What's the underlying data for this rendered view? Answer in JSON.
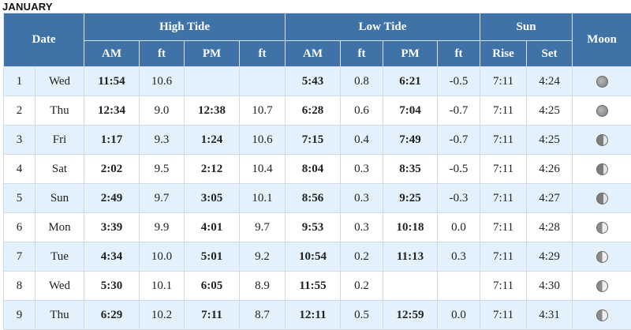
{
  "month": "JANUARY",
  "headers": {
    "date": "Date",
    "high_tide": "High Tide",
    "low_tide": "Low Tide",
    "sun": "Sun",
    "moon": "Moon",
    "am": "AM",
    "pm": "PM",
    "ft": "ft",
    "rise": "Rise",
    "set": "Set"
  },
  "rows": [
    {
      "day": "1",
      "dow": "Wed",
      "high_am": "11:54",
      "high_am_ft": "10.6",
      "high_pm": "",
      "high_pm_ft": "",
      "low_am": "5:43",
      "low_am_ft": "0.8",
      "low_pm": "6:21",
      "low_pm_ft": "-0.5",
      "rise": "7:11",
      "set": "4:24",
      "moon": "full-moon-icon"
    },
    {
      "day": "2",
      "dow": "Thu",
      "high_am": "12:34",
      "high_am_ft": "9.0",
      "high_pm": "12:38",
      "high_pm_ft": "10.7",
      "low_am": "6:28",
      "low_am_ft": "0.6",
      "low_pm": "7:04",
      "low_pm_ft": "-0.7",
      "rise": "7:11",
      "set": "4:25",
      "moon": "full-moon-icon"
    },
    {
      "day": "3",
      "dow": "Fri",
      "high_am": "1:17",
      "high_am_ft": "9.3",
      "high_pm": "1:24",
      "high_pm_ft": "10.6",
      "low_am": "7:15",
      "low_am_ft": "0.4",
      "low_pm": "7:49",
      "low_pm_ft": "-0.7",
      "rise": "7:11",
      "set": "4:25",
      "moon": "waning-gibbous-moon-icon"
    },
    {
      "day": "4",
      "dow": "Sat",
      "high_am": "2:02",
      "high_am_ft": "9.5",
      "high_pm": "2:12",
      "high_pm_ft": "10.4",
      "low_am": "8:04",
      "low_am_ft": "0.3",
      "low_pm": "8:35",
      "low_pm_ft": "-0.5",
      "rise": "7:11",
      "set": "4:26",
      "moon": "waning-gibbous-moon-icon"
    },
    {
      "day": "5",
      "dow": "Sun",
      "high_am": "2:49",
      "high_am_ft": "9.7",
      "high_pm": "3:05",
      "high_pm_ft": "10.1",
      "low_am": "8:56",
      "low_am_ft": "0.3",
      "low_pm": "9:25",
      "low_pm_ft": "-0.3",
      "rise": "7:11",
      "set": "4:27",
      "moon": "waning-gibbous-moon-icon"
    },
    {
      "day": "6",
      "dow": "Mon",
      "high_am": "3:39",
      "high_am_ft": "9.9",
      "high_pm": "4:01",
      "high_pm_ft": "9.7",
      "low_am": "9:53",
      "low_am_ft": "0.3",
      "low_pm": "10:18",
      "low_pm_ft": "0.0",
      "rise": "7:11",
      "set": "4:28",
      "moon": "last-quarter-moon-icon"
    },
    {
      "day": "7",
      "dow": "Tue",
      "high_am": "4:34",
      "high_am_ft": "10.0",
      "high_pm": "5:01",
      "high_pm_ft": "9.2",
      "low_am": "10:54",
      "low_am_ft": "0.2",
      "low_pm": "11:13",
      "low_pm_ft": "0.3",
      "rise": "7:11",
      "set": "4:29",
      "moon": "last-quarter-moon-icon"
    },
    {
      "day": "8",
      "dow": "Wed",
      "high_am": "5:30",
      "high_am_ft": "10.1",
      "high_pm": "6:05",
      "high_pm_ft": "8.9",
      "low_am": "11:55",
      "low_am_ft": "0.2",
      "low_pm": "",
      "low_pm_ft": "",
      "rise": "7:11",
      "set": "4:30",
      "moon": "last-quarter-moon-icon"
    },
    {
      "day": "9",
      "dow": "Thu",
      "high_am": "6:29",
      "high_am_ft": "10.2",
      "high_pm": "7:11",
      "high_pm_ft": "8.7",
      "low_am": "12:11",
      "low_am_ft": "0.5",
      "low_pm": "12:59",
      "low_pm_ft": "0.0",
      "rise": "7:11",
      "set": "4:31",
      "moon": "last-quarter-moon-icon"
    }
  ]
}
